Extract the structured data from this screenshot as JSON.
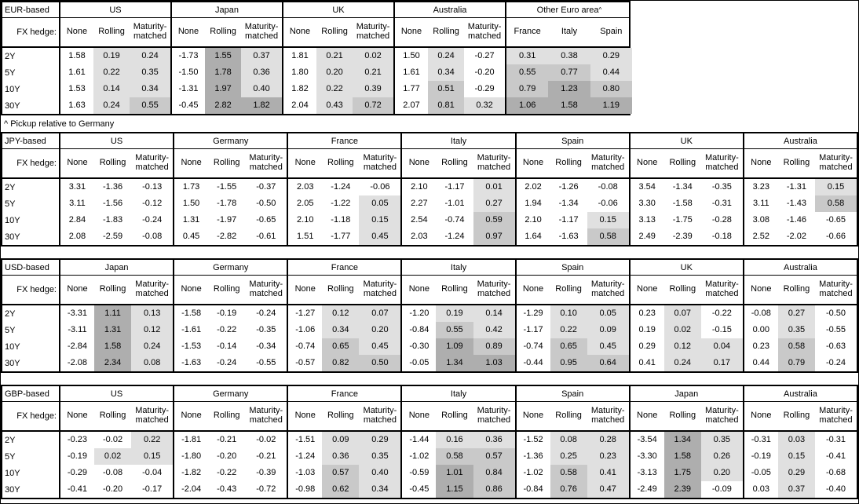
{
  "note": "^ Pickup relative to Germany",
  "fx_hedge_label": "FX hedge:",
  "row_labels": [
    "2Y",
    "5Y",
    "10Y",
    "30Y"
  ],
  "shading": {
    "rule": "cell background from cell value; negative = white, 0 to 0.5 = light, 0.5 to 1 = medium, 1 and above = dark; applies to hedged/pickup columns only",
    "thresholds": [
      0,
      0.5,
      1.0
    ],
    "colors": {
      "light": "#e0e0e0",
      "medium": "#c9c9c9",
      "dark": "#aeaeae"
    }
  },
  "tables": [
    {
      "label": "EUR-based",
      "groups": [
        {
          "name": "US",
          "cols": [
            "None",
            "Rolling",
            "Maturity-matched"
          ],
          "shaded_cols": [
            1,
            2
          ],
          "rows": [
            [
              "1.58",
              "0.19",
              "0.24"
            ],
            [
              "1.61",
              "0.22",
              "0.35"
            ],
            [
              "1.53",
              "0.14",
              "0.34"
            ],
            [
              "1.63",
              "0.24",
              "0.55"
            ]
          ]
        },
        {
          "name": "Japan",
          "cols": [
            "None",
            "Rolling",
            "Maturity-matched"
          ],
          "shaded_cols": [
            1,
            2
          ],
          "rows": [
            [
              "-1.73",
              "1.55",
              "0.37"
            ],
            [
              "-1.50",
              "1.78",
              "0.36"
            ],
            [
              "-1.31",
              "1.97",
              "0.40"
            ],
            [
              "-0.45",
              "2.82",
              "1.82"
            ]
          ]
        },
        {
          "name": "UK",
          "cols": [
            "None",
            "Rolling",
            "Maturity-matched"
          ],
          "shaded_cols": [
            1,
            2
          ],
          "rows": [
            [
              "1.81",
              "0.21",
              "0.02"
            ],
            [
              "1.80",
              "0.20",
              "0.21"
            ],
            [
              "1.82",
              "0.22",
              "0.39"
            ],
            [
              "2.04",
              "0.43",
              "0.72"
            ]
          ]
        },
        {
          "name": "Australia",
          "cols": [
            "None",
            "Rolling",
            "Maturity-matched"
          ],
          "shaded_cols": [
            1,
            2
          ],
          "rows": [
            [
              "1.50",
              "0.24",
              "-0.27"
            ],
            [
              "1.61",
              "0.34",
              "-0.20"
            ],
            [
              "1.77",
              "0.51",
              "-0.29"
            ],
            [
              "2.07",
              "0.81",
              "0.32"
            ]
          ]
        },
        {
          "name": "Other Euro area",
          "sup": "^",
          "eq": true,
          "cols": [
            "France",
            "Italy",
            "Spain"
          ],
          "shaded_cols": [
            0,
            1,
            2
          ],
          "rows": [
            [
              "0.31",
              "0.38",
              "0.29"
            ],
            [
              "0.55",
              "0.77",
              "0.44"
            ],
            [
              "0.79",
              "1.23",
              "0.80"
            ],
            [
              "1.06",
              "1.58",
              "1.19"
            ]
          ]
        }
      ]
    },
    {
      "label": "JPY-based",
      "groups": [
        {
          "name": "US",
          "cols": [
            "None",
            "Rolling",
            "Maturity-matched"
          ],
          "shaded_cols": [
            1,
            2
          ],
          "rows": [
            [
              "3.31",
              "-1.36",
              "-0.13"
            ],
            [
              "3.11",
              "-1.56",
              "-0.12"
            ],
            [
              "2.84",
              "-1.83",
              "-0.24"
            ],
            [
              "2.08",
              "-2.59",
              "-0.08"
            ]
          ]
        },
        {
          "name": "Germany",
          "cols": [
            "None",
            "Rolling",
            "Maturity-matched"
          ],
          "shaded_cols": [
            1,
            2
          ],
          "rows": [
            [
              "1.73",
              "-1.55",
              "-0.37"
            ],
            [
              "1.50",
              "-1.78",
              "-0.50"
            ],
            [
              "1.31",
              "-1.97",
              "-0.65"
            ],
            [
              "0.45",
              "-2.82",
              "-0.61"
            ]
          ]
        },
        {
          "name": "France",
          "cols": [
            "None",
            "Rolling",
            "Maturity-matched"
          ],
          "shaded_cols": [
            1,
            2
          ],
          "rows": [
            [
              "2.03",
              "-1.24",
              "-0.06"
            ],
            [
              "2.05",
              "-1.22",
              "0.05"
            ],
            [
              "2.10",
              "-1.18",
              "0.15"
            ],
            [
              "1.51",
              "-1.77",
              "0.45"
            ]
          ]
        },
        {
          "name": "Italy",
          "cols": [
            "None",
            "Rolling",
            "Maturity-matched"
          ],
          "shaded_cols": [
            1,
            2
          ],
          "rows": [
            [
              "2.10",
              "-1.17",
              "0.01"
            ],
            [
              "2.27",
              "-1.01",
              "0.27"
            ],
            [
              "2.54",
              "-0.74",
              "0.59"
            ],
            [
              "2.03",
              "-1.24",
              "0.97"
            ]
          ]
        },
        {
          "name": "Spain",
          "cols": [
            "None",
            "Rolling",
            "Maturity-matched"
          ],
          "shaded_cols": [
            1,
            2
          ],
          "rows": [
            [
              "2.02",
              "-1.26",
              "-0.08"
            ],
            [
              "1.94",
              "-1.34",
              "-0.06"
            ],
            [
              "2.10",
              "-1.17",
              "0.15"
            ],
            [
              "1.64",
              "-1.63",
              "0.58"
            ]
          ]
        },
        {
          "name": "UK",
          "cols": [
            "None",
            "Rolling",
            "Maturity-matched"
          ],
          "shaded_cols": [
            1,
            2
          ],
          "rows": [
            [
              "3.54",
              "-1.34",
              "-0.35"
            ],
            [
              "3.30",
              "-1.58",
              "-0.31"
            ],
            [
              "3.13",
              "-1.75",
              "-0.28"
            ],
            [
              "2.49",
              "-2.39",
              "-0.18"
            ]
          ]
        },
        {
          "name": "Australia",
          "cols": [
            "None",
            "Rolling",
            "Maturity-matched"
          ],
          "shaded_cols": [
            1,
            2
          ],
          "rows": [
            [
              "3.23",
              "-1.31",
              "0.15"
            ],
            [
              "3.11",
              "-1.43",
              "0.58"
            ],
            [
              "3.08",
              "-1.46",
              "-0.65"
            ],
            [
              "2.52",
              "-2.02",
              "-0.66"
            ]
          ]
        }
      ]
    },
    {
      "label": "USD-based",
      "groups": [
        {
          "name": "Japan",
          "cols": [
            "None",
            "Rolling",
            "Maturity-matched"
          ],
          "shaded_cols": [
            1,
            2
          ],
          "rows": [
            [
              "-3.31",
              "1.11",
              "0.13"
            ],
            [
              "-3.11",
              "1.31",
              "0.12"
            ],
            [
              "-2.84",
              "1.58",
              "0.24"
            ],
            [
              "-2.08",
              "2.34",
              "0.08"
            ]
          ]
        },
        {
          "name": "Germany",
          "cols": [
            "None",
            "Rolling",
            "Maturity-matched"
          ],
          "shaded_cols": [
            1,
            2
          ],
          "rows": [
            [
              "-1.58",
              "-0.19",
              "-0.24"
            ],
            [
              "-1.61",
              "-0.22",
              "-0.35"
            ],
            [
              "-1.53",
              "-0.14",
              "-0.34"
            ],
            [
              "-1.63",
              "-0.24",
              "-0.55"
            ]
          ]
        },
        {
          "name": "France",
          "cols": [
            "None",
            "Rolling",
            "Maturity-matched"
          ],
          "shaded_cols": [
            1,
            2
          ],
          "rows": [
            [
              "-1.27",
              "0.12",
              "0.07"
            ],
            [
              "-1.06",
              "0.34",
              "0.20"
            ],
            [
              "-0.74",
              "0.65",
              "0.45"
            ],
            [
              "-0.57",
              "0.82",
              "0.50"
            ]
          ]
        },
        {
          "name": "Italy",
          "cols": [
            "None",
            "Rolling",
            "Maturity-matched"
          ],
          "shaded_cols": [
            1,
            2
          ],
          "rows": [
            [
              "-1.20",
              "0.19",
              "0.14"
            ],
            [
              "-0.84",
              "0.55",
              "0.42"
            ],
            [
              "-0.30",
              "1.09",
              "0.89"
            ],
            [
              "-0.05",
              "1.34",
              "1.03"
            ]
          ]
        },
        {
          "name": "Spain",
          "cols": [
            "None",
            "Rolling",
            "Maturity-matched"
          ],
          "shaded_cols": [
            1,
            2
          ],
          "rows": [
            [
              "-1.29",
              "0.10",
              "0.05"
            ],
            [
              "-1.17",
              "0.22",
              "0.09"
            ],
            [
              "-0.74",
              "0.65",
              "0.45"
            ],
            [
              "-0.44",
              "0.95",
              "0.64"
            ]
          ]
        },
        {
          "name": "UK",
          "cols": [
            "None",
            "Rolling",
            "Maturity-matched"
          ],
          "shaded_cols": [
            1,
            2
          ],
          "rows": [
            [
              "0.23",
              "0.07",
              "-0.22"
            ],
            [
              "0.19",
              "0.02",
              "-0.15"
            ],
            [
              "0.29",
              "0.12",
              "0.04"
            ],
            [
              "0.41",
              "0.24",
              "0.17"
            ]
          ]
        },
        {
          "name": "Australia",
          "cols": [
            "None",
            "Rolling",
            "Maturity-matched"
          ],
          "shaded_cols": [
            1,
            2
          ],
          "rows": [
            [
              "-0.08",
              "0.27",
              "-0.50"
            ],
            [
              "0.00",
              "0.35",
              "-0.55"
            ],
            [
              "0.23",
              "0.58",
              "-0.63"
            ],
            [
              "0.44",
              "0.79",
              "-0.24"
            ]
          ]
        }
      ]
    },
    {
      "label": "GBP-based",
      "groups": [
        {
          "name": "US",
          "cols": [
            "None",
            "Rolling",
            "Maturity-matched"
          ],
          "shaded_cols": [
            1,
            2
          ],
          "rows": [
            [
              "-0.23",
              "-0.02",
              "0.22"
            ],
            [
              "-0.19",
              "0.02",
              "0.15"
            ],
            [
              "-0.29",
              "-0.08",
              "-0.04"
            ],
            [
              "-0.41",
              "-0.20",
              "-0.17"
            ]
          ]
        },
        {
          "name": "Germany",
          "cols": [
            "None",
            "Rolling",
            "Maturity-matched"
          ],
          "shaded_cols": [
            1,
            2
          ],
          "rows": [
            [
              "-1.81",
              "-0.21",
              "-0.02"
            ],
            [
              "-1.80",
              "-0.20",
              "-0.21"
            ],
            [
              "-1.82",
              "-0.22",
              "-0.39"
            ],
            [
              "-2.04",
              "-0.43",
              "-0.72"
            ]
          ]
        },
        {
          "name": "France",
          "cols": [
            "None",
            "Rolling",
            "Maturity-matched"
          ],
          "shaded_cols": [
            1,
            2
          ],
          "rows": [
            [
              "-1.51",
              "0.09",
              "0.29"
            ],
            [
              "-1.24",
              "0.36",
              "0.35"
            ],
            [
              "-1.03",
              "0.57",
              "0.40"
            ],
            [
              "-0.98",
              "0.62",
              "0.34"
            ]
          ]
        },
        {
          "name": "Italy",
          "cols": [
            "None",
            "Rolling",
            "Maturity-matched"
          ],
          "shaded_cols": [
            1,
            2
          ],
          "rows": [
            [
              "-1.44",
              "0.16",
              "0.36"
            ],
            [
              "-1.02",
              "0.58",
              "0.57"
            ],
            [
              "-0.59",
              "1.01",
              "0.84"
            ],
            [
              "-0.45",
              "1.15",
              "0.86"
            ]
          ]
        },
        {
          "name": "Spain",
          "cols": [
            "None",
            "Rolling",
            "Maturity-matched"
          ],
          "shaded_cols": [
            1,
            2
          ],
          "rows": [
            [
              "-1.52",
              "0.08",
              "0.28"
            ],
            [
              "-1.36",
              "0.25",
              "0.23"
            ],
            [
              "-1.02",
              "0.58",
              "0.41"
            ],
            [
              "-0.84",
              "0.76",
              "0.47"
            ]
          ]
        },
        {
          "name": "Japan",
          "cols": [
            "None",
            "Rolling",
            "Maturity-matched"
          ],
          "shaded_cols": [
            1,
            2
          ],
          "rows": [
            [
              "-3.54",
              "1.34",
              "0.35"
            ],
            [
              "-3.30",
              "1.58",
              "0.26"
            ],
            [
              "-3.13",
              "1.75",
              "0.20"
            ],
            [
              "-2.49",
              "2.39",
              "-0.09"
            ]
          ]
        },
        {
          "name": "Australia",
          "cols": [
            "None",
            "Rolling",
            "Maturity-matched"
          ],
          "shaded_cols": [
            1,
            2
          ],
          "rows": [
            [
              "-0.31",
              "0.03",
              "-0.31"
            ],
            [
              "-0.19",
              "0.15",
              "-0.41"
            ],
            [
              "-0.05",
              "0.29",
              "-0.68"
            ],
            [
              "0.03",
              "0.37",
              "-0.40"
            ]
          ]
        }
      ]
    }
  ]
}
